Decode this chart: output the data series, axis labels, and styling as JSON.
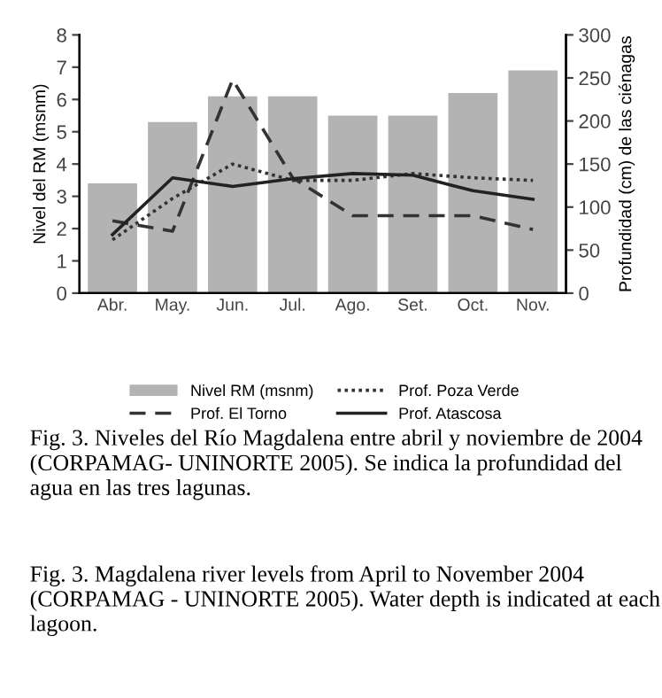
{
  "chart_data": {
    "type": "bar",
    "categories": [
      "Abr.",
      "May.",
      "Jun.",
      "Jul.",
      "Ago.",
      "Set.",
      "Oct.",
      "Nov."
    ],
    "ylabel": "Nivel del RM (msnm)",
    "y2label": "Profundidad (cm) de las ciénagas",
    "ylim": [
      0,
      8
    ],
    "yticks": [
      0,
      1,
      2,
      3,
      4,
      5,
      6,
      7,
      8
    ],
    "y2lim": [
      0,
      300
    ],
    "y2ticks": [
      0,
      50,
      100,
      150,
      200,
      250,
      300
    ],
    "series": [
      {
        "name": "Nivel RM (msnm)",
        "color": "#b3b3b3",
        "values": [
          3.4,
          5.3,
          6.1,
          6.1,
          5.5,
          5.5,
          6.2,
          6.9
        ]
      },
      {
        "name": "Prof. Poza Verde",
        "type": "line",
        "axis": "y2",
        "color": "#333333",
        "line_style": "dotted",
        "values": [
          62,
          110,
          150,
          131,
          131,
          139,
          134,
          131
        ]
      },
      {
        "name": "Prof. El Torno",
        "type": "line",
        "axis": "y2",
        "color": "#333333",
        "line_style": "dashed",
        "values": [
          84,
          72,
          248,
          134,
          90,
          90,
          90,
          74
        ]
      },
      {
        "name": "Prof. Atascosa",
        "type": "line",
        "axis": "y2",
        "color": "#222222",
        "line_style": "solid",
        "values": [
          68,
          134,
          124,
          133,
          139,
          137,
          119,
          109
        ]
      }
    ],
    "legend": "bottom",
    "grid": false,
    "annotations": [
      "Fig. 3. Niveles del Río Magdalena entre abril y noviembre de 2004 (CORPAMAG- UNINORTE 2005). Se indica la profundidad del agua en las tres lagunas.",
      "Fig. 3. Magdalena river levels from April to November 2004 (CORPAMAG - UNINORTE 2005). Water depth is indicated at each lagoon."
    ]
  }
}
